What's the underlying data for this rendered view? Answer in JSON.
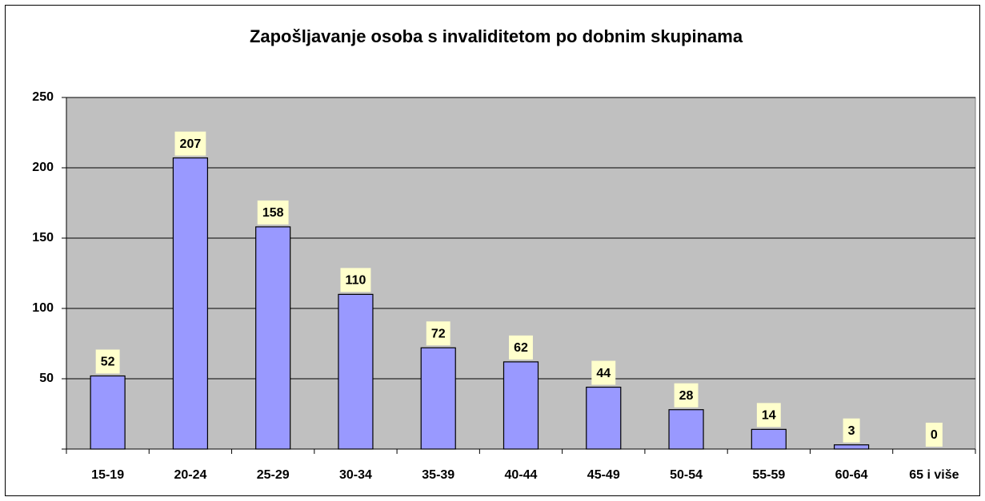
{
  "chart_data": {
    "type": "bar",
    "title": "Zapošljavanje osoba s invaliditetom po dobnim skupinama",
    "categories": [
      "15-19",
      "20-24",
      "25-29",
      "30-34",
      "35-39",
      "40-44",
      "45-49",
      "50-54",
      "55-59",
      "60-64",
      "65 i više"
    ],
    "values": [
      52,
      207,
      158,
      110,
      72,
      62,
      44,
      28,
      14,
      3,
      0
    ],
    "color": "#9999ff",
    "ylim": [
      0,
      250
    ],
    "yticks": [
      50,
      100,
      150,
      200,
      250
    ],
    "grid": true
  }
}
